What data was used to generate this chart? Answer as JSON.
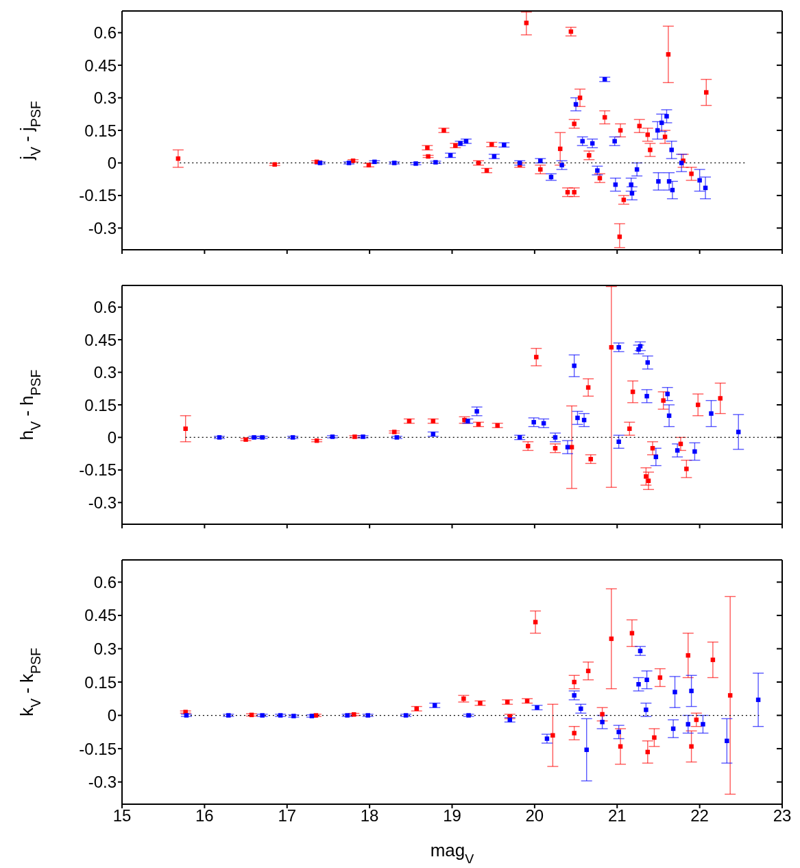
{
  "chart_data": [
    {
      "type": "scatter",
      "ylabel": "j$_{V}$ - j$_{PSF}$",
      "xlim": [
        15,
        23
      ],
      "xticks": [
        15,
        16,
        17,
        18,
        19,
        20,
        21,
        22,
        23
      ],
      "ylim": [
        -0.4,
        0.7
      ],
      "yticks": [
        -0.3,
        -0.15,
        0,
        0.15,
        0.3,
        0.45,
        0.6
      ],
      "tick_labels": "y",
      "marker": "square",
      "series": [
        {
          "color": "#ff0000",
          "x": [
            15.68,
            16.85,
            17.36,
            17.8,
            17.99,
            18.7,
            18.71,
            18.9,
            19.04,
            19.32,
            19.42,
            19.48,
            19.82,
            19.9,
            20.07,
            20.31,
            20.4,
            20.44,
            20.48,
            20.48,
            20.55,
            20.66,
            20.79,
            20.85,
            21.03,
            21.04,
            21.08,
            21.27,
            21.37,
            21.4,
            21.58,
            21.62,
            21.8,
            21.9,
            22.08
          ],
          "values": [
            0.02,
            -0.007,
            0.005,
            0.01,
            -0.01,
            0.07,
            0.03,
            0.15,
            0.08,
            0.0,
            -0.035,
            0.085,
            -0.01,
            0.645,
            -0.03,
            0.065,
            -0.135,
            0.605,
            0.18,
            -0.135,
            0.3,
            0.035,
            -0.07,
            0.21,
            -0.34,
            0.15,
            -0.17,
            0.17,
            0.13,
            0.06,
            0.12,
            0.5,
            0.01,
            -0.05,
            0.325
          ],
          "errors": [
            0.04,
            0.005,
            0.005,
            0.005,
            0.008,
            0.01,
            0.005,
            0.01,
            0.01,
            0.01,
            0.01,
            0.01,
            0.01,
            [
              0.59,
              0.695
            ],
            0.02,
            0.075,
            0.02,
            0.02,
            0.02,
            0.02,
            0.04,
            0.02,
            0.02,
            0.03,
            [
              -0.39,
              -0.28
            ],
            0.03,
            0.02,
            0.03,
            0.03,
            0.03,
            0.03,
            0.13,
            0.03,
            0.03,
            0.06
          ]
        },
        {
          "color": "#0000ff",
          "x": [
            17.4,
            17.75,
            18.06,
            18.3,
            18.56,
            18.8,
            18.98,
            19.1,
            19.17,
            19.51,
            19.63,
            19.82,
            20.07,
            20.2,
            20.33,
            20.5,
            20.58,
            20.7,
            20.76,
            20.85,
            20.97,
            20.98,
            21.17,
            21.18,
            21.24,
            21.49,
            21.5,
            21.54,
            21.6,
            21.63,
            21.66,
            21.67,
            21.78,
            22.0,
            22.07
          ],
          "values": [
            0.0,
            0.0,
            0.005,
            0.0,
            -0.003,
            0.003,
            0.035,
            0.09,
            0.1,
            0.03,
            0.083,
            0.0,
            0.01,
            -0.065,
            -0.01,
            0.27,
            0.1,
            0.09,
            -0.035,
            0.385,
            0.1,
            -0.1,
            -0.1,
            -0.14,
            -0.03,
            0.15,
            -0.085,
            0.185,
            0.215,
            -0.085,
            0.06,
            -0.125,
            0.0,
            -0.08,
            -0.115
          ],
          "errors": [
            0.005,
            0.005,
            0.005,
            0.005,
            0.005,
            0.005,
            0.01,
            0.01,
            0.01,
            0.01,
            0.01,
            0.01,
            0.01,
            0.015,
            0.02,
            0.03,
            0.02,
            0.02,
            0.02,
            0.01,
            0.02,
            0.03,
            0.03,
            0.03,
            0.03,
            0.04,
            0.04,
            0.04,
            0.03,
            0.04,
            0.04,
            0.04,
            0.04,
            0.05,
            0.05
          ]
        },
        {
          "type": "line",
          "color": "#000000",
          "x": [
            15.7,
            22.55
          ],
          "values": [
            0,
            0
          ],
          "line_style": "dotted",
          "marker": "none"
        }
      ]
    },
    {
      "type": "scatter",
      "ylabel": "h$_{V}$ - h$_{PSF}$",
      "xlim": [
        15,
        23
      ],
      "xticks": [
        15,
        16,
        17,
        18,
        19,
        20,
        21,
        22,
        23
      ],
      "ylim": [
        -0.4,
        0.7
      ],
      "yticks": [
        -0.3,
        -0.15,
        0,
        0.15,
        0.3,
        0.45,
        0.6
      ],
      "tick_labels": "y",
      "marker": "square",
      "series": [
        {
          "color": "#ff0000",
          "x": [
            15.77,
            16.5,
            17.36,
            17.82,
            18.3,
            18.48,
            18.77,
            19.15,
            19.32,
            19.55,
            19.92,
            20.02,
            20.25,
            20.45,
            20.65,
            20.68,
            20.93,
            21.15,
            21.19,
            21.35,
            21.38,
            21.43,
            21.56,
            21.77,
            21.84,
            21.98,
            22.25
          ],
          "values": [
            0.04,
            -0.01,
            -0.015,
            0.003,
            0.025,
            0.075,
            0.075,
            0.08,
            0.06,
            0.055,
            -0.04,
            0.37,
            -0.05,
            -0.045,
            0.23,
            -0.1,
            0.415,
            0.04,
            0.21,
            -0.18,
            -0.2,
            -0.05,
            0.17,
            -0.03,
            -0.145,
            0.15,
            0.18
          ],
          "errors": [
            0.06,
            0.005,
            0.005,
            0.005,
            0.005,
            0.01,
            0.01,
            0.015,
            0.01,
            0.01,
            0.02,
            0.04,
            0.02,
            0.19,
            0.04,
            0.02,
            [
              -0.23,
              0.695
            ],
            0.03,
            0.05,
            0.04,
            0.04,
            0.03,
            0.04,
            0.03,
            0.04,
            0.05,
            0.07
          ]
        },
        {
          "color": "#0000ff",
          "x": [
            16.18,
            16.6,
            16.7,
            17.07,
            17.55,
            17.92,
            18.33,
            18.77,
            19.19,
            19.3,
            19.82,
            19.99,
            20.11,
            20.25,
            20.4,
            20.48,
            20.52,
            20.6,
            21.02,
            21.02,
            21.26,
            21.28,
            21.36,
            21.37,
            21.47,
            21.61,
            21.63,
            21.73,
            21.94,
            22.14,
            22.47
          ],
          "values": [
            0.0,
            0.0,
            0.0,
            0.0,
            0.003,
            0.003,
            0.0,
            0.015,
            0.075,
            0.12,
            0.0,
            0.07,
            0.065,
            0.0,
            -0.045,
            0.33,
            0.09,
            0.08,
            0.415,
            -0.02,
            0.405,
            0.42,
            0.19,
            0.345,
            -0.09,
            0.2,
            0.1,
            -0.06,
            -0.065,
            0.11,
            0.025
          ],
          "errors": [
            0.005,
            0.005,
            0.005,
            0.005,
            0.005,
            0.005,
            0.005,
            0.01,
            0.01,
            0.02,
            0.01,
            0.02,
            0.02,
            0.02,
            0.03,
            0.05,
            0.03,
            0.03,
            0.02,
            0.03,
            0.02,
            0.02,
            0.03,
            0.03,
            0.04,
            0.03,
            0.05,
            0.03,
            0.04,
            0.06,
            0.08
          ]
        },
        {
          "type": "line",
          "color": "#000000",
          "x": [
            15.77,
            23
          ],
          "values": [
            0,
            0
          ],
          "line_style": "dotted",
          "marker": "none"
        }
      ]
    },
    {
      "type": "scatter",
      "ylabel": "k$_{V}$ - k$_{PSF}$",
      "xlabel": "mag$_{V}$",
      "xlim": [
        15,
        23
      ],
      "xticks": [
        15,
        16,
        17,
        18,
        19,
        20,
        21,
        22,
        23
      ],
      "ylim": [
        -0.4,
        0.7
      ],
      "yticks": [
        -0.3,
        -0.15,
        0,
        0.15,
        0.3,
        0.45,
        0.6
      ],
      "marker": "square",
      "series": [
        {
          "color": "#ff0000",
          "x": [
            15.77,
            16.57,
            17.35,
            17.81,
            18.57,
            19.14,
            19.34,
            19.67,
            19.7,
            19.91,
            20.01,
            20.22,
            20.48,
            20.48,
            20.65,
            20.82,
            20.93,
            21.04,
            21.18,
            21.37,
            21.45,
            21.52,
            21.86,
            21.9,
            21.96,
            22.16,
            22.37
          ],
          "values": [
            0.015,
            0.002,
            0.0,
            0.004,
            0.03,
            0.075,
            0.055,
            0.06,
            -0.005,
            0.065,
            0.42,
            -0.09,
            0.15,
            -0.08,
            0.2,
            0.005,
            0.345,
            -0.14,
            0.37,
            -0.165,
            -0.1,
            0.17,
            0.27,
            -0.14,
            -0.02,
            0.25,
            0.09
          ],
          "errors": [
            0.005,
            0.005,
            0.005,
            0.005,
            0.01,
            0.015,
            0.01,
            0.01,
            0.01,
            0.01,
            0.05,
            0.14,
            0.03,
            0.03,
            0.04,
            0.03,
            0.225,
            0.08,
            0.06,
            0.05,
            0.04,
            0.04,
            0.1,
            0.07,
            0.03,
            0.08,
            0.445
          ]
        },
        {
          "color": "#0000ff",
          "x": [
            15.78,
            16.29,
            16.7,
            16.92,
            17.08,
            17.3,
            17.73,
            17.98,
            18.44,
            18.79,
            19.2,
            19.7,
            20.03,
            20.15,
            20.48,
            20.56,
            20.63,
            20.82,
            21.02,
            21.26,
            21.28,
            21.35,
            21.36,
            21.68,
            21.7,
            21.86,
            21.9,
            22.04,
            22.33,
            22.71
          ],
          "values": [
            0.0,
            0.0,
            0.0,
            0.0,
            -0.003,
            -0.003,
            0.0,
            0.0,
            0.0,
            0.045,
            0.0,
            -0.02,
            0.035,
            -0.105,
            0.09,
            0.03,
            -0.155,
            -0.03,
            -0.075,
            0.14,
            0.29,
            0.025,
            0.16,
            -0.06,
            0.105,
            -0.04,
            0.11,
            -0.04,
            -0.115,
            0.07
          ],
          "errors": [
            0.005,
            0.005,
            0.005,
            0.005,
            0.005,
            0.005,
            0.005,
            0.005,
            0.005,
            0.01,
            0.005,
            0.01,
            0.01,
            0.02,
            0.02,
            0.02,
            0.14,
            0.03,
            0.03,
            0.03,
            0.02,
            0.03,
            0.04,
            0.04,
            0.07,
            0.04,
            0.07,
            0.04,
            0.1,
            0.12
          ]
        },
        {
          "type": "line",
          "color": "#000000",
          "x": [
            15.78,
            22.72
          ],
          "values": [
            0,
            0
          ],
          "line_style": "dotted",
          "marker": "none"
        }
      ]
    }
  ]
}
